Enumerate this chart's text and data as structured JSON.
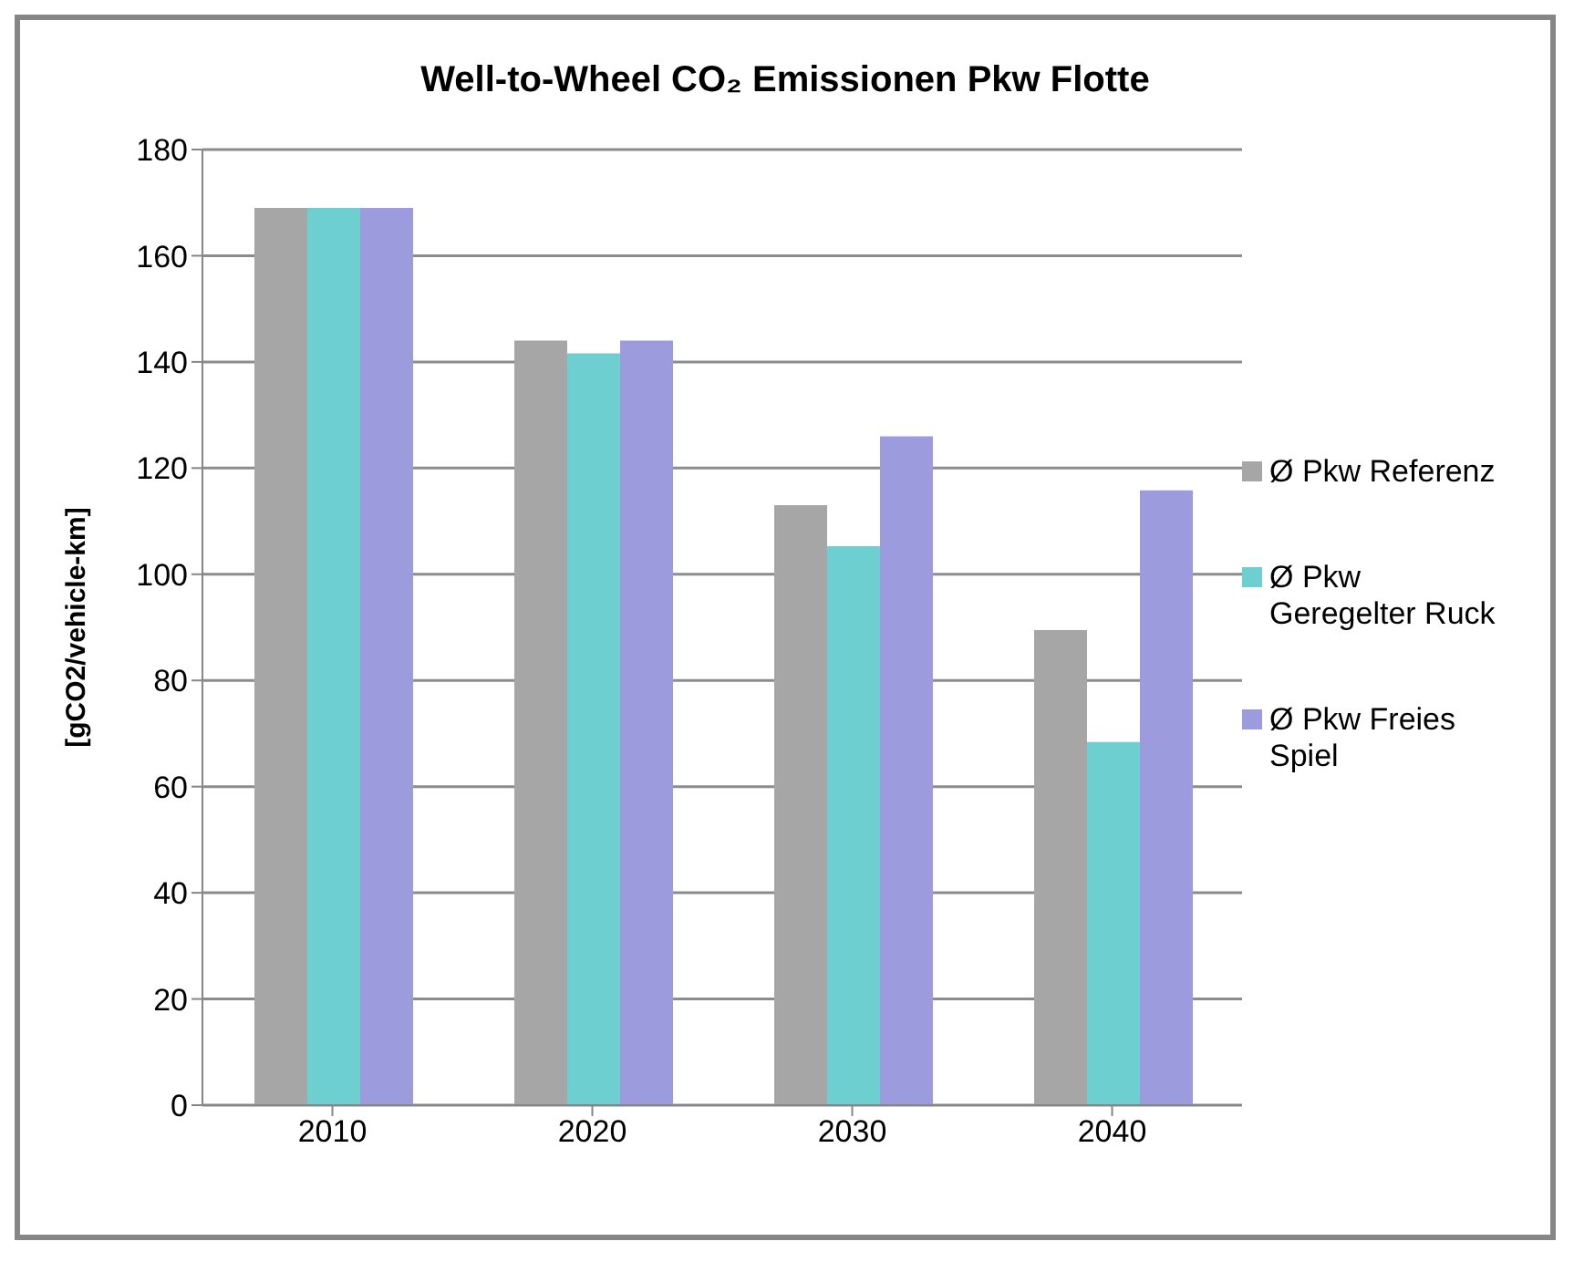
{
  "chart_data": {
    "type": "bar",
    "title": "Well-to-Wheel CO₂ Emissionen Pkw Flotte",
    "ylabel": "[gCO2/vehicle-km]",
    "categories": [
      "2010",
      "2020",
      "2030",
      "2040"
    ],
    "series": [
      {
        "name": "Ø Pkw Referenz",
        "color": "#a6a6a6",
        "values": [
          169,
          144,
          113,
          89.5
        ]
      },
      {
        "name": "Ø Pkw Geregelter Ruck",
        "color": "#6dcfd0",
        "values": [
          169,
          141.6,
          105.3,
          68.4
        ]
      },
      {
        "name": "Ø Pkw Freies Spiel",
        "color": "#9b9bdd",
        "values": [
          169,
          144,
          126,
          115.8
        ]
      }
    ],
    "ylim": [
      0,
      180
    ],
    "yticks": [
      0,
      20,
      40,
      60,
      80,
      100,
      120,
      140,
      160,
      180
    ],
    "grid": "y",
    "legend": "right"
  }
}
